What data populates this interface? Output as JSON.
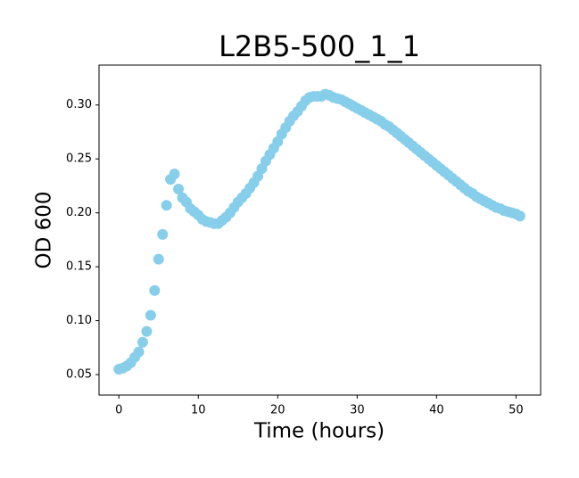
{
  "chart_data": {
    "type": "scatter",
    "title": "L2B5-500_1_1",
    "xlabel": "Time (hours)",
    "ylabel": "OD 600",
    "x": [
      0,
      0.5,
      1,
      1.5,
      2,
      2.5,
      3,
      3.5,
      4,
      4.5,
      5,
      5.5,
      6,
      6.5,
      7,
      7.5,
      8,
      8.5,
      9,
      9.5,
      10,
      10.5,
      11,
      11.5,
      12,
      12.5,
      13,
      13.5,
      14,
      14.5,
      15,
      15.5,
      16,
      16.5,
      17,
      17.5,
      18,
      18.5,
      19,
      19.5,
      20,
      20.5,
      21,
      21.5,
      22,
      22.5,
      23,
      23.5,
      24,
      24.5,
      25,
      25.5,
      26,
      26.5,
      27,
      27.5,
      28,
      28.5,
      29,
      29.5,
      30,
      30.5,
      31,
      31.5,
      32,
      32.5,
      33,
      33.5,
      34,
      34.5,
      35,
      35.5,
      36,
      36.5,
      37,
      37.5,
      38,
      38.5,
      39,
      39.5,
      40,
      40.5,
      41,
      41.5,
      42,
      42.5,
      43,
      43.5,
      44,
      44.5,
      45,
      45.5,
      46,
      46.5,
      47,
      47.5,
      48,
      48.5,
      49,
      49.5,
      50,
      50.5
    ],
    "values": [
      0.055,
      0.056,
      0.058,
      0.061,
      0.066,
      0.071,
      0.08,
      0.09,
      0.105,
      0.128,
      0.157,
      0.18,
      0.207,
      0.231,
      0.236,
      0.222,
      0.214,
      0.21,
      0.204,
      0.201,
      0.198,
      0.194,
      0.192,
      0.191,
      0.19,
      0.19,
      0.193,
      0.196,
      0.2,
      0.205,
      0.21,
      0.214,
      0.218,
      0.223,
      0.228,
      0.234,
      0.241,
      0.248,
      0.254,
      0.26,
      0.266,
      0.273,
      0.279,
      0.285,
      0.29,
      0.294,
      0.299,
      0.304,
      0.307,
      0.308,
      0.308,
      0.308,
      0.31,
      0.309,
      0.307,
      0.306,
      0.305,
      0.303,
      0.301,
      0.299,
      0.297,
      0.295,
      0.293,
      0.291,
      0.289,
      0.287,
      0.285,
      0.282,
      0.28,
      0.277,
      0.274,
      0.271,
      0.268,
      0.265,
      0.262,
      0.259,
      0.256,
      0.253,
      0.25,
      0.247,
      0.244,
      0.241,
      0.238,
      0.235,
      0.232,
      0.229,
      0.226,
      0.223,
      0.22,
      0.218,
      0.215,
      0.213,
      0.211,
      0.209,
      0.207,
      0.205,
      0.204,
      0.202,
      0.201,
      0.2,
      0.199,
      0.197
    ],
    "color": "#87ceeb",
    "xlim": [
      -2.5,
      53.1
    ],
    "ylim": [
      0.031,
      0.337
    ],
    "xticks": [
      0,
      10,
      20,
      30,
      40,
      50
    ],
    "yticks": [
      0.05,
      {
        "value": 0.1,
        "label": "0.10"
      },
      0.15,
      {
        "value": 0.2,
        "label": "0.20"
      },
      0.25,
      {
        "value": 0.3,
        "label": "0.30"
      }
    ]
  }
}
